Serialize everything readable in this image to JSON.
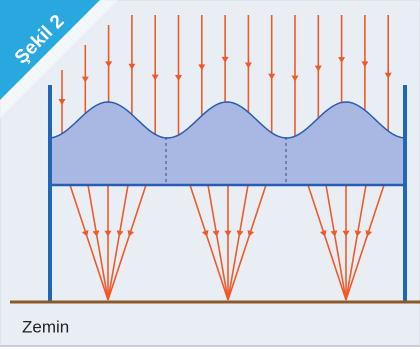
{
  "figure": {
    "label": "Şekil 2",
    "ground_label": "Zemin"
  }
}
